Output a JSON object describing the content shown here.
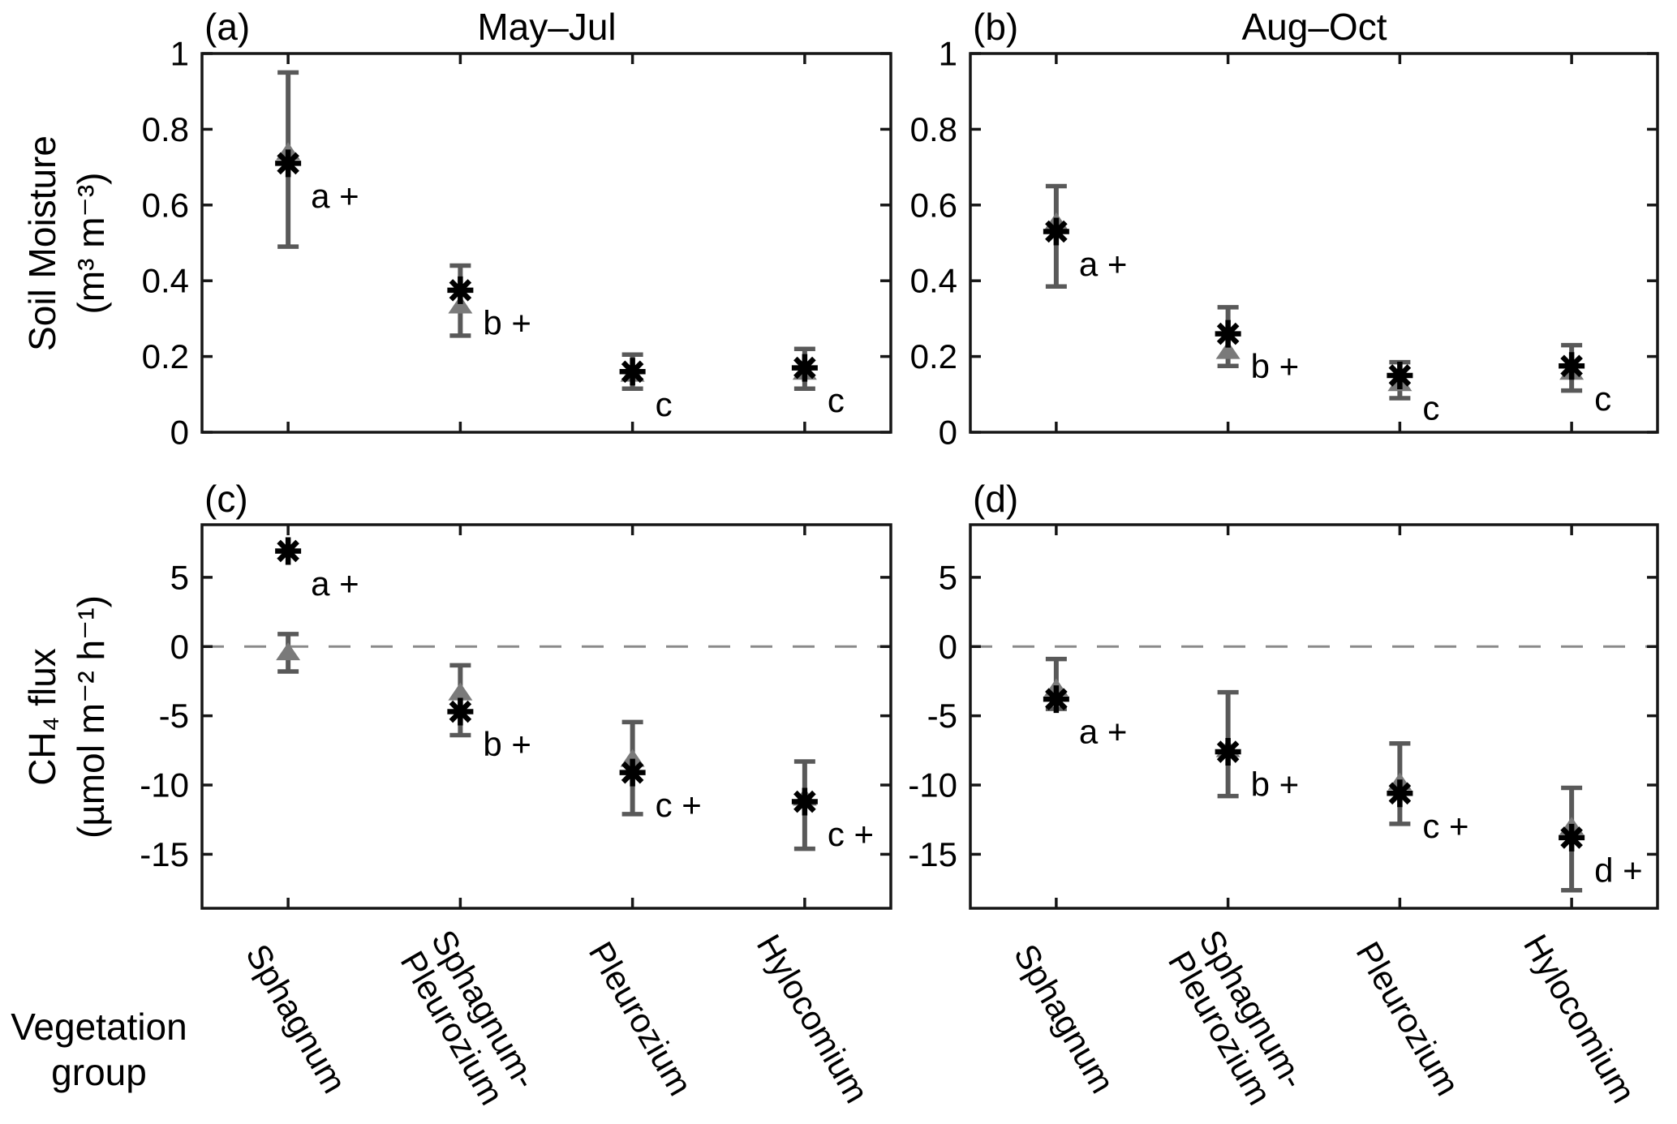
{
  "labels": {
    "column_titles": [
      "May–Jul",
      "Aug–Oct"
    ],
    "row_ylabels": [
      [
        "Soil Moisture",
        "(m³ m⁻³)"
      ],
      [
        "CH₄ flux",
        "(µmol m⁻² h⁻¹)"
      ]
    ],
    "xaxis_label": [
      "Vegetation",
      "group"
    ]
  },
  "style": {
    "star_color": "#000000",
    "triangle_color": "#7a7a7a",
    "error_bar_color": "#595959",
    "zero_line_color": "#8a8a8a",
    "axis_color": "#161616",
    "background": "#ffffff"
  },
  "categories": [
    "Sphagnum",
    "Sphagnum-Pleurozium",
    "Pleurozium",
    "Hylocomium"
  ],
  "category_tick_labels": [
    "Sphagnum",
    "Sphagnum-\nPleurozium",
    "Pleurozium",
    "Hylocomium"
  ],
  "chart_data": [
    {
      "id": "a",
      "panel_label": "(a)",
      "season": "May–Jul",
      "row": 0,
      "col": 0,
      "type": "scatter",
      "ylabel": "Soil Moisture (m³ m⁻³)",
      "ylim": [
        0,
        1
      ],
      "yticks": [
        0,
        0.2,
        0.4,
        0.6,
        0.8,
        1
      ],
      "ytick_labels": [
        "0",
        "0.2",
        "0.4",
        "0.6",
        "0.8",
        "1"
      ],
      "zero_line": false,
      "points": [
        {
          "category": "Sphagnum",
          "star": 0.71,
          "triangle": 0.74,
          "err": [
            0.49,
            0.95
          ],
          "label": "a +"
        },
        {
          "category": "Sphagnum-Pleurozium",
          "star": 0.375,
          "triangle": 0.335,
          "err": [
            0.255,
            0.44
          ],
          "label": "b +"
        },
        {
          "category": "Pleurozium",
          "star": 0.16,
          "triangle": 0.155,
          "err": [
            0.115,
            0.205
          ],
          "label": "c"
        },
        {
          "category": "Hylocomium",
          "star": 0.17,
          "triangle": 0.16,
          "err": [
            0.115,
            0.22
          ],
          "label": "c"
        }
      ]
    },
    {
      "id": "b",
      "panel_label": "(b)",
      "season": "Aug–Oct",
      "row": 0,
      "col": 1,
      "type": "scatter",
      "ylabel": "Soil Moisture (m³ m⁻³)",
      "ylim": [
        0,
        1
      ],
      "yticks": [
        0,
        0.2,
        0.4,
        0.6,
        0.8,
        1
      ],
      "ytick_labels": [
        "0",
        "0.2",
        "0.4",
        "0.6",
        "0.8",
        "1"
      ],
      "zero_line": false,
      "points": [
        {
          "category": "Sphagnum",
          "star": 0.53,
          "triangle": 0.555,
          "err": [
            0.385,
            0.65
          ],
          "label": "a +"
        },
        {
          "category": "Sphagnum-Pleurozium",
          "star": 0.26,
          "triangle": 0.215,
          "err": [
            0.175,
            0.33
          ],
          "label": "b +"
        },
        {
          "category": "Pleurozium",
          "star": 0.15,
          "triangle": 0.13,
          "err": [
            0.09,
            0.185
          ],
          "label": "c"
        },
        {
          "category": "Hylocomium",
          "star": 0.175,
          "triangle": 0.16,
          "err": [
            0.11,
            0.23
          ],
          "label": "c"
        }
      ]
    },
    {
      "id": "c",
      "panel_label": "(c)",
      "season": "May–Jul",
      "row": 1,
      "col": 0,
      "type": "scatter",
      "ylabel": "CH₄ flux (µmol m⁻² h⁻¹)",
      "ylim": [
        -18.9,
        8.8
      ],
      "yticks": [
        5,
        0,
        -5,
        -10,
        -15
      ],
      "ytick_labels": [
        "5",
        "0",
        "-5",
        "-10",
        "-15"
      ],
      "zero_line": true,
      "points": [
        {
          "category": "Sphagnum",
          "star": 6.9,
          "triangle": -0.4,
          "err": [
            -1.8,
            0.9
          ],
          "err_on": "triangle",
          "label": "a +"
        },
        {
          "category": "Sphagnum-Pleurozium",
          "star": -4.7,
          "triangle": -3.3,
          "err": [
            -6.4,
            -1.35
          ],
          "label": "b +"
        },
        {
          "category": "Pleurozium",
          "star": -9.1,
          "triangle": -8.1,
          "err": [
            -12.1,
            -5.45
          ],
          "label": "c +"
        },
        {
          "category": "Hylocomium",
          "star": -11.2,
          "triangle": -10.9,
          "err": [
            -14.6,
            -8.3
          ],
          "label": "c +"
        }
      ]
    },
    {
      "id": "d",
      "panel_label": "(d)",
      "season": "Aug–Oct",
      "row": 1,
      "col": 1,
      "type": "scatter",
      "ylabel": "CH₄ flux (µmol m⁻² h⁻¹)",
      "ylim": [
        -18.9,
        8.8
      ],
      "yticks": [
        5,
        0,
        -5,
        -10,
        -15
      ],
      "ytick_labels": [
        "5",
        "0",
        "-5",
        "-10",
        "-15"
      ],
      "zero_line": true,
      "points": [
        {
          "category": "Sphagnum",
          "star": -3.8,
          "triangle": -3.0,
          "err": [
            -4.5,
            -0.9
          ],
          "label": "a +"
        },
        {
          "category": "Sphagnum-Pleurozium",
          "star": -7.6,
          "triangle": -7.4,
          "err": [
            -10.8,
            -3.3
          ],
          "label": "b +"
        },
        {
          "category": "Pleurozium",
          "star": -10.6,
          "triangle": -9.8,
          "err": [
            -12.8,
            -7.0
          ],
          "label": "c +"
        },
        {
          "category": "Hylocomium",
          "star": -13.8,
          "triangle": -13.0,
          "err": [
            -17.6,
            -10.2
          ],
          "label": "d +"
        }
      ]
    }
  ]
}
